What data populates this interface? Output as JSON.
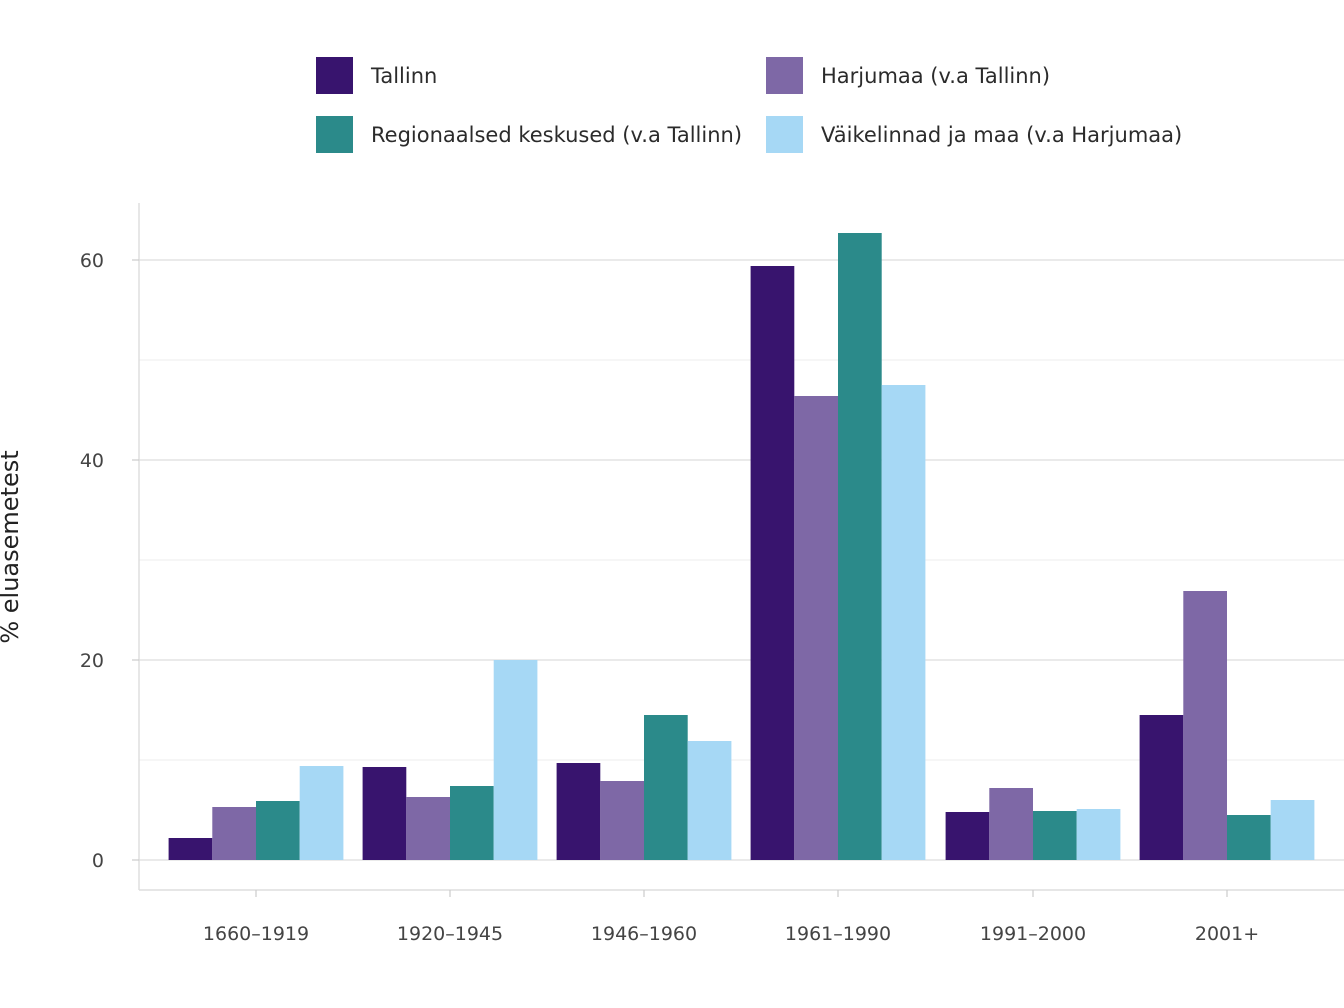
{
  "chart_data": {
    "type": "bar",
    "title": "",
    "xlabel": "",
    "ylabel": "% eluasemetest",
    "ylim": [
      0,
      65
    ],
    "yticks": [
      0,
      20,
      40,
      60
    ],
    "grid": true,
    "legend_position": "top",
    "categories": [
      "1660–1919",
      "1920–1945",
      "1946–1960",
      "1961–1990",
      "1991–2000",
      "2001+"
    ],
    "series": [
      {
        "name": "Tallinn",
        "color": "#38146e",
        "values": [
          2.2,
          9.3,
          9.7,
          59.4,
          4.8,
          14.5
        ]
      },
      {
        "name": "Harjumaa (v.a Tallinn)",
        "color": "#7e68a6",
        "values": [
          5.3,
          6.3,
          7.9,
          46.4,
          7.2,
          26.9
        ]
      },
      {
        "name": "Regionaalsed keskused (v.a Tallinn)",
        "color": "#2b8a8a",
        "values": [
          5.9,
          7.4,
          14.5,
          62.7,
          4.9,
          4.5
        ]
      },
      {
        "name": "Väikelinnad ja maa (v.a Harjumaa)",
        "color": "#a6d8f5",
        "values": [
          9.4,
          20.0,
          11.9,
          47.5,
          5.1,
          6.0
        ]
      }
    ]
  }
}
